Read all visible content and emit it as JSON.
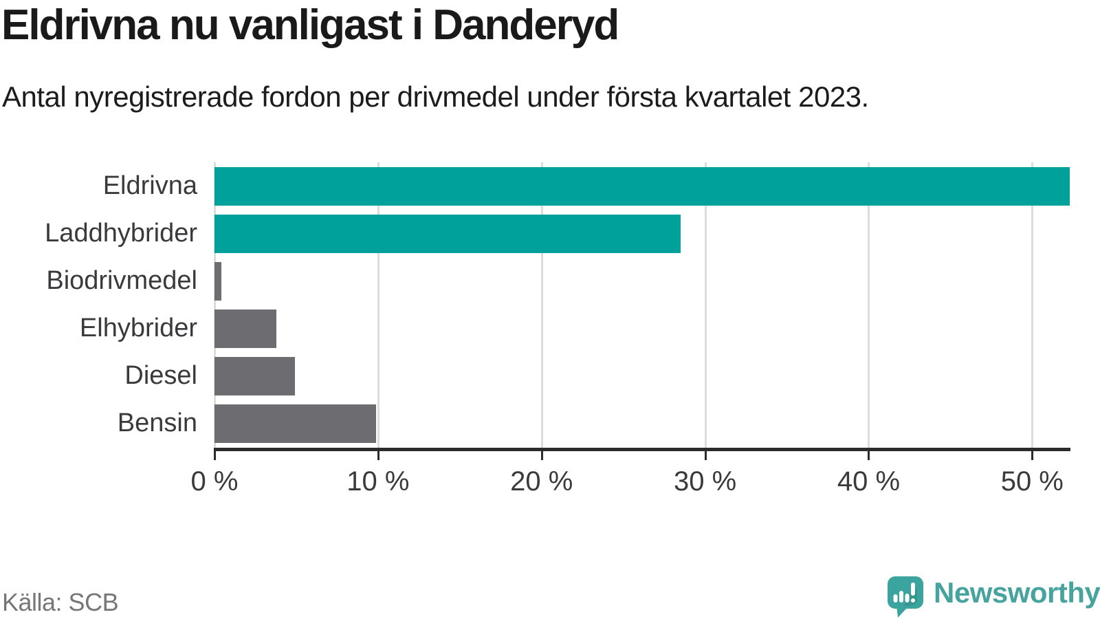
{
  "header": {
    "title": "Eldrivna nu vanligast i Danderyd",
    "subtitle": "Antal nyregistrerade fordon per drivmedel under första kvartalet 2023."
  },
  "chart_data": {
    "type": "bar",
    "orientation": "horizontal",
    "title": "Eldrivna nu vanligast i Danderyd",
    "subtitle": "Antal nyregistrerade fordon per drivmedel under första kvartalet 2023.",
    "categories": [
      "Eldrivna",
      "Laddhybrider",
      "Biodrivmedel",
      "Elhybrider",
      "Diesel",
      "Bensin"
    ],
    "values": [
      52.3,
      28.5,
      0.4,
      3.8,
      4.9,
      9.9
    ],
    "unit": "%",
    "series_colors": [
      "accent",
      "accent",
      "muted",
      "muted",
      "muted",
      "muted"
    ],
    "xlabel": "",
    "ylabel": "",
    "xlim": [
      0,
      52.3
    ],
    "grid": true,
    "ticks": [
      {
        "value": 0,
        "label": "0 %"
      },
      {
        "value": 10,
        "label": "10 %"
      },
      {
        "value": 20,
        "label": "20 %"
      },
      {
        "value": 30,
        "label": "30 %"
      },
      {
        "value": 40,
        "label": "40 %"
      },
      {
        "value": 50,
        "label": "50 %"
      }
    ]
  },
  "colors": {
    "accent": "#00a19b",
    "muted": "#6c6c71",
    "gridline": "#dcdcdc",
    "axis": "#2b2b2b",
    "title_text": "#1a1a1a",
    "label_text": "#3a3a3e",
    "source_text": "#76767a",
    "logo_mark": "#3ba49e",
    "logo_text": "#47a39d"
  },
  "footer": {
    "source": "Källa: SCB",
    "brand": "Newsworthy"
  }
}
